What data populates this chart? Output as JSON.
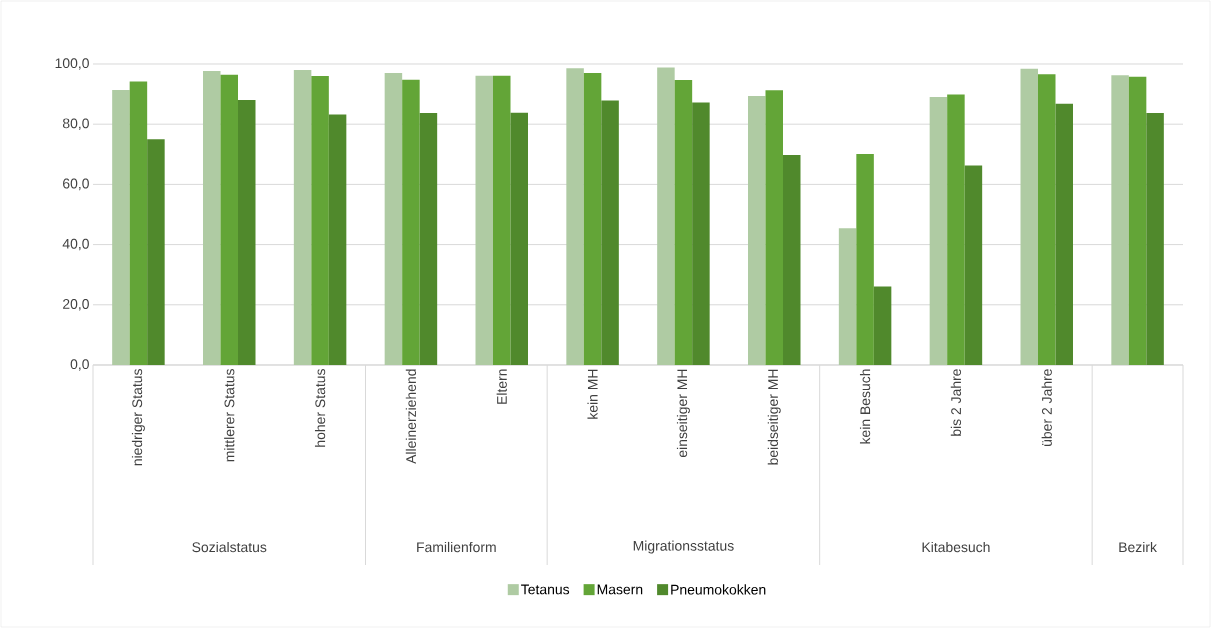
{
  "chart_data": {
    "type": "bar",
    "categories": [
      "niedriger Status",
      "mittlerer Status",
      "hoher Status",
      "Alleinerziehend",
      "Eltern",
      "kein MH",
      "einseitiger MH",
      "beidseitiger MH",
      "kein Besuch",
      "bis 2 Jahre",
      "über 2 Jahre",
      null
    ],
    "series": [
      {
        "name": "Tetanus",
        "color": "#afcba3",
        "values": [
          91.4,
          97.7,
          98.0,
          97.0,
          96.1,
          98.6,
          98.8,
          89.4,
          45.4,
          89.0,
          98.4,
          96.3
        ]
      },
      {
        "name": "Masern",
        "color": "#63a537",
        "values": [
          94.2,
          96.4,
          96.0,
          94.8,
          96.1,
          97.0,
          94.7,
          91.3,
          70.1,
          89.9,
          96.6,
          95.8
        ]
      },
      {
        "name": "Pneumokokken",
        "color": "#50892c",
        "values": [
          75.0,
          88.0,
          83.2,
          83.7,
          83.8,
          87.9,
          87.2,
          69.8,
          26.1,
          66.3,
          86.8,
          83.7
        ]
      }
    ],
    "annotations": [
      "Sozialstatus",
      "Familienform",
      "Migrationsstatus",
      "Kitabesuch",
      "Bezirk"
    ],
    "ylim": [
      0,
      100
    ],
    "yticks": [
      {
        "value": 0,
        "label": "0,0"
      },
      {
        "value": 20,
        "label": "20,0"
      },
      {
        "value": 40,
        "label": "40,0"
      },
      {
        "value": 60,
        "label": "60,0"
      },
      {
        "value": 80,
        "label": "80,0"
      },
      {
        "value": 100,
        "label": "100,0"
      }
    ],
    "grid": "y",
    "legend": "bottom"
  }
}
